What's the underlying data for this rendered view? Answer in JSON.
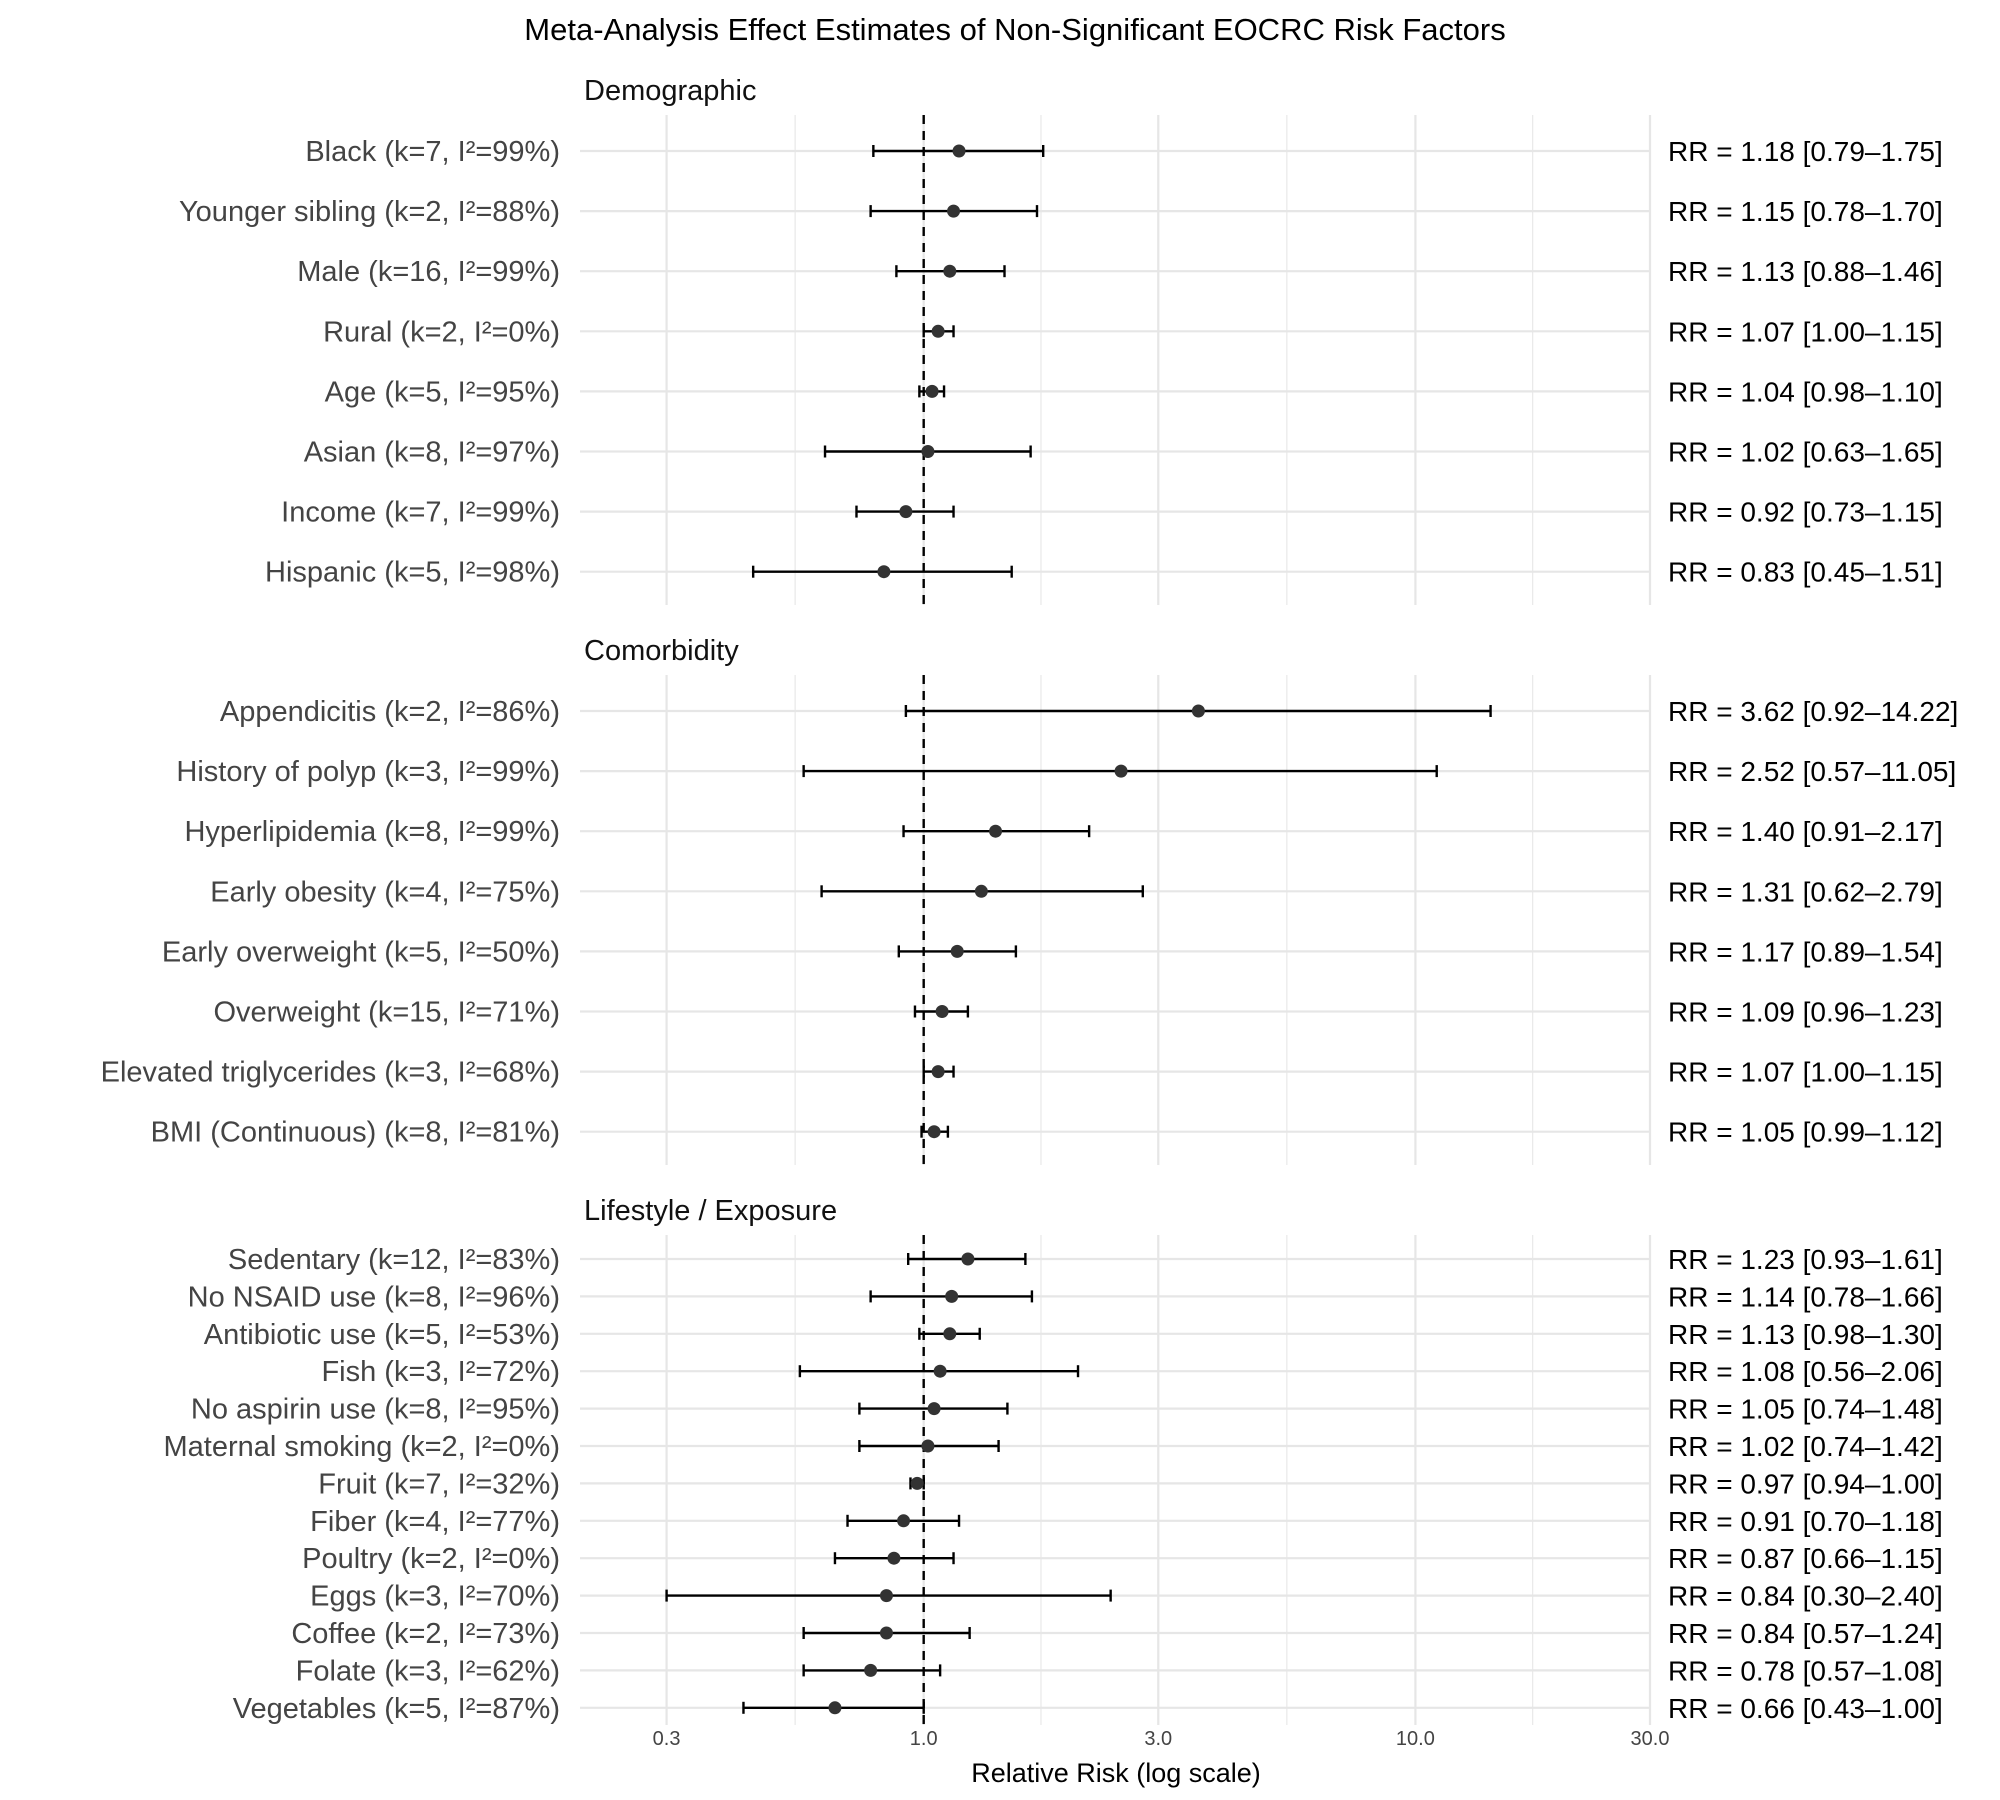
{
  "chart_data": {
    "type": "forest",
    "title": "Meta-Analysis Effect Estimates of Non-Significant EOCRC Risk Factors",
    "xlabel": "Relative Risk (log scale)",
    "x_scale": "log",
    "xlim": [
      0.2,
      30
    ],
    "x_ticks": [
      0.3,
      1,
      3,
      10,
      30
    ],
    "x_tick_labels": [
      "0.3",
      "1.0",
      "3.0",
      "10.0",
      "30.0"
    ],
    "reference_line": 1,
    "grid": true,
    "panels": [
      {
        "title": "Demographic",
        "rows": [
          {
            "label": "Black (k=7, I²=99%)",
            "rr": 1.18,
            "lo": 0.79,
            "hi": 1.75,
            "text": "RR = 1.18 [0.79–1.75]"
          },
          {
            "label": "Younger sibling (k=2, I²=88%)",
            "rr": 1.15,
            "lo": 0.78,
            "hi": 1.7,
            "text": "RR = 1.15 [0.78–1.70]"
          },
          {
            "label": "Male (k=16, I²=99%)",
            "rr": 1.13,
            "lo": 0.88,
            "hi": 1.46,
            "text": "RR = 1.13 [0.88–1.46]"
          },
          {
            "label": "Rural (k=2, I²=0%)",
            "rr": 1.07,
            "lo": 1.0,
            "hi": 1.15,
            "text": "RR = 1.07 [1.00–1.15]"
          },
          {
            "label": "Age (k=5, I²=95%)",
            "rr": 1.04,
            "lo": 0.98,
            "hi": 1.1,
            "text": "RR = 1.04 [0.98–1.10]"
          },
          {
            "label": "Asian (k=8, I²=97%)",
            "rr": 1.02,
            "lo": 0.63,
            "hi": 1.65,
            "text": "RR = 1.02 [0.63–1.65]"
          },
          {
            "label": "Income (k=7, I²=99%)",
            "rr": 0.92,
            "lo": 0.73,
            "hi": 1.15,
            "text": "RR = 0.92 [0.73–1.15]"
          },
          {
            "label": "Hispanic (k=5, I²=98%)",
            "rr": 0.83,
            "lo": 0.45,
            "hi": 1.51,
            "text": "RR = 0.83 [0.45–1.51]"
          }
        ]
      },
      {
        "title": "Comorbidity",
        "rows": [
          {
            "label": "Appendicitis (k=2, I²=86%)",
            "rr": 3.62,
            "lo": 0.92,
            "hi": 14.22,
            "text": "RR = 3.62 [0.92–14.22]"
          },
          {
            "label": "History of polyp (k=3, I²=99%)",
            "rr": 2.52,
            "lo": 0.57,
            "hi": 11.05,
            "text": "RR = 2.52 [0.57–11.05]"
          },
          {
            "label": "Hyperlipidemia (k=8, I²=99%)",
            "rr": 1.4,
            "lo": 0.91,
            "hi": 2.17,
            "text": "RR = 1.40 [0.91–2.17]"
          },
          {
            "label": "Early obesity (k=4, I²=75%)",
            "rr": 1.31,
            "lo": 0.62,
            "hi": 2.79,
            "text": "RR = 1.31 [0.62–2.79]"
          },
          {
            "label": "Early overweight (k=5, I²=50%)",
            "rr": 1.17,
            "lo": 0.89,
            "hi": 1.54,
            "text": "RR = 1.17 [0.89–1.54]"
          },
          {
            "label": "Overweight (k=15, I²=71%)",
            "rr": 1.09,
            "lo": 0.96,
            "hi": 1.23,
            "text": "RR = 1.09 [0.96–1.23]"
          },
          {
            "label": "Elevated triglycerides (k=3, I²=68%)",
            "rr": 1.07,
            "lo": 1.0,
            "hi": 1.15,
            "text": "RR = 1.07 [1.00–1.15]"
          },
          {
            "label": "BMI (Continuous) (k=8, I²=81%)",
            "rr": 1.05,
            "lo": 0.99,
            "hi": 1.12,
            "text": "RR = 1.05 [0.99–1.12]"
          }
        ]
      },
      {
        "title": "Lifestyle / Exposure",
        "rows": [
          {
            "label": "Sedentary (k=12, I²=83%)",
            "rr": 1.23,
            "lo": 0.93,
            "hi": 1.61,
            "text": "RR = 1.23 [0.93–1.61]"
          },
          {
            "label": "No NSAID use (k=8, I²=96%)",
            "rr": 1.14,
            "lo": 0.78,
            "hi": 1.66,
            "text": "RR = 1.14 [0.78–1.66]"
          },
          {
            "label": "Antibiotic use (k=5, I²=53%)",
            "rr": 1.13,
            "lo": 0.98,
            "hi": 1.3,
            "text": "RR = 1.13 [0.98–1.30]"
          },
          {
            "label": "Fish (k=3, I²=72%)",
            "rr": 1.08,
            "lo": 0.56,
            "hi": 2.06,
            "text": "RR = 1.08 [0.56–2.06]"
          },
          {
            "label": "No aspirin use (k=8, I²=95%)",
            "rr": 1.05,
            "lo": 0.74,
            "hi": 1.48,
            "text": "RR = 1.05 [0.74–1.48]"
          },
          {
            "label": "Maternal smoking (k=2, I²=0%)",
            "rr": 1.02,
            "lo": 0.74,
            "hi": 1.42,
            "text": "RR = 1.02 [0.74–1.42]"
          },
          {
            "label": "Fruit (k=7, I²=32%)",
            "rr": 0.97,
            "lo": 0.94,
            "hi": 1.0,
            "text": "RR = 0.97 [0.94–1.00]"
          },
          {
            "label": "Fiber (k=4, I²=77%)",
            "rr": 0.91,
            "lo": 0.7,
            "hi": 1.18,
            "text": "RR = 0.91 [0.70–1.18]"
          },
          {
            "label": "Poultry (k=2, I²=0%)",
            "rr": 0.87,
            "lo": 0.66,
            "hi": 1.15,
            "text": "RR = 0.87 [0.66–1.15]"
          },
          {
            "label": "Eggs (k=3, I²=70%)",
            "rr": 0.84,
            "lo": 0.3,
            "hi": 2.4,
            "text": "RR = 0.84 [0.30–2.40]"
          },
          {
            "label": "Coffee (k=2, I²=73%)",
            "rr": 0.84,
            "lo": 0.57,
            "hi": 1.24,
            "text": "RR = 0.84 [0.57–1.24]"
          },
          {
            "label": "Folate (k=3, I²=62%)",
            "rr": 0.78,
            "lo": 0.57,
            "hi": 1.08,
            "text": "RR = 0.78 [0.57–1.08]"
          },
          {
            "label": "Vegetables (k=5, I²=87%)",
            "rr": 0.66,
            "lo": 0.43,
            "hi": 1.0,
            "text": "RR = 0.66 [0.43–1.00]"
          }
        ]
      }
    ],
    "colors": {
      "point": "#333333",
      "whisker": "#000000",
      "gridline": "#e6e6e6",
      "reference": "#000000"
    }
  }
}
